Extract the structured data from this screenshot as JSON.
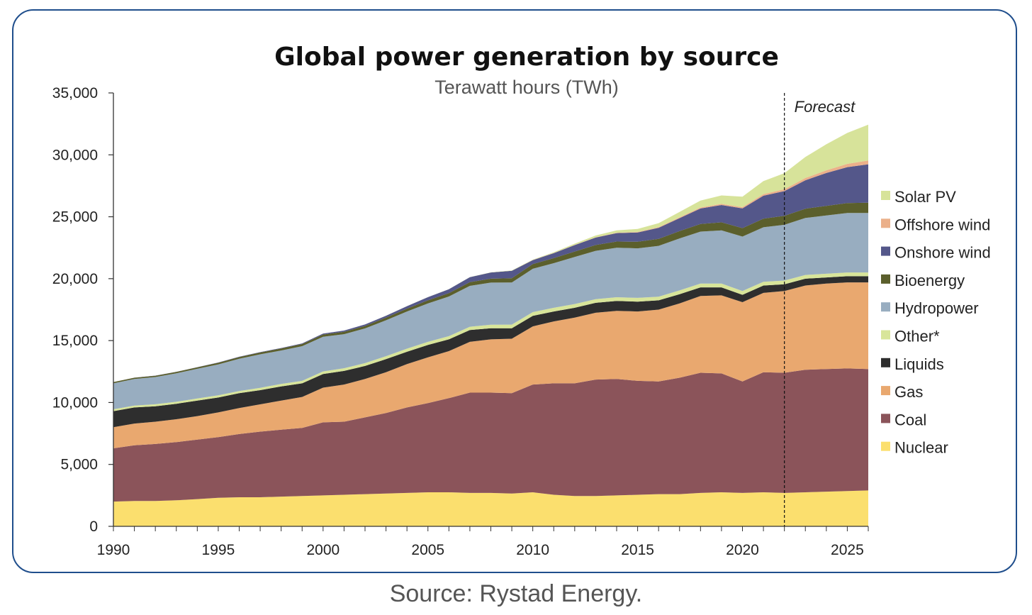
{
  "source": "Source: Rystad Energy.",
  "chart_data": {
    "type": "area",
    "stacked": true,
    "title": "Global power generation by source",
    "subtitle": "Terawatt hours (TWh)",
    "xlabel": "",
    "ylabel": "",
    "xlim": [
      1990,
      2026
    ],
    "ylim": [
      0,
      35000
    ],
    "x_ticks": [
      1990,
      1995,
      2000,
      2005,
      2010,
      2015,
      2020,
      2025
    ],
    "y_ticks": [
      0,
      5000,
      10000,
      15000,
      20000,
      25000,
      30000,
      35000
    ],
    "y_tick_labels": [
      "0",
      "5,000",
      "10,000",
      "15,000",
      "20,000",
      "25,000",
      "30,000",
      "35,000"
    ],
    "grid": false,
    "legend_position": "right",
    "forecast_line_x": 2022,
    "forecast_label": "Forecast",
    "x": [
      1990,
      1991,
      1992,
      1993,
      1994,
      1995,
      1996,
      1997,
      1998,
      1999,
      2000,
      2001,
      2002,
      2003,
      2004,
      2005,
      2006,
      2007,
      2008,
      2009,
      2010,
      2011,
      2012,
      2013,
      2014,
      2015,
      2016,
      2017,
      2018,
      2019,
      2020,
      2021,
      2022,
      2023,
      2024,
      2025,
      2026
    ],
    "series": [
      {
        "name": "Nuclear",
        "color": "#fbdf6e",
        "values": [
          2000,
          2050,
          2050,
          2100,
          2200,
          2300,
          2350,
          2350,
          2400,
          2450,
          2500,
          2550,
          2600,
          2650,
          2700,
          2750,
          2750,
          2700,
          2700,
          2650,
          2750,
          2550,
          2450,
          2450,
          2500,
          2550,
          2600,
          2600,
          2700,
          2750,
          2700,
          2750,
          2700,
          2750,
          2800,
          2850,
          2900
        ]
      },
      {
        "name": "Coal",
        "color": "#8b545a",
        "values": [
          4300,
          4500,
          4600,
          4700,
          4800,
          4900,
          5100,
          5300,
          5400,
          5500,
          5900,
          5900,
          6200,
          6500,
          6900,
          7200,
          7600,
          8100,
          8100,
          8100,
          8700,
          9000,
          9100,
          9400,
          9400,
          9200,
          9100,
          9400,
          9700,
          9600,
          9000,
          9700,
          9700,
          9900,
          9900,
          9900,
          9800
        ]
      },
      {
        "name": "Gas",
        "color": "#e9a86f",
        "values": [
          1700,
          1750,
          1800,
          1850,
          1900,
          2000,
          2100,
          2200,
          2350,
          2500,
          2800,
          3000,
          3100,
          3300,
          3500,
          3700,
          3800,
          4100,
          4300,
          4400,
          4700,
          5000,
          5300,
          5400,
          5500,
          5600,
          5800,
          6000,
          6200,
          6300,
          6400,
          6400,
          6600,
          6800,
          6900,
          6950,
          7000
        ]
      },
      {
        "name": "Liquids",
        "color": "#2e2e2e",
        "values": [
          1300,
          1300,
          1250,
          1250,
          1250,
          1200,
          1200,
          1150,
          1150,
          1100,
          1100,
          1100,
          1050,
          1050,
          1000,
          1000,
          950,
          950,
          900,
          850,
          850,
          800,
          800,
          800,
          800,
          800,
          750,
          750,
          700,
          650,
          600,
          600,
          550,
          550,
          500,
          500,
          500
        ]
      },
      {
        "name": "Other*",
        "color": "#d8e59a",
        "values": [
          150,
          150,
          160,
          160,
          170,
          180,
          180,
          190,
          200,
          200,
          210,
          220,
          230,
          240,
          250,
          250,
          260,
          270,
          280,
          290,
          300,
          300,
          300,
          300,
          300,
          300,
          300,
          300,
          300,
          300,
          300,
          300,
          300,
          300,
          300,
          300,
          300
        ]
      },
      {
        "name": "Hydropower",
        "color": "#98adc0",
        "values": [
          2100,
          2150,
          2200,
          2300,
          2400,
          2500,
          2600,
          2700,
          2700,
          2800,
          2800,
          2750,
          2800,
          2900,
          3000,
          3100,
          3200,
          3300,
          3400,
          3400,
          3500,
          3600,
          3800,
          3900,
          4000,
          4000,
          4100,
          4200,
          4200,
          4300,
          4400,
          4400,
          4500,
          4600,
          4700,
          4800,
          4800
        ]
      },
      {
        "name": "Bioenergy",
        "color": "#5b5f2c",
        "values": [
          100,
          100,
          100,
          110,
          120,
          130,
          140,
          150,
          160,
          170,
          180,
          190,
          200,
          210,
          230,
          250,
          270,
          300,
          320,
          350,
          380,
          410,
          440,
          470,
          500,
          530,
          560,
          590,
          620,
          650,
          680,
          700,
          720,
          750,
          780,
          810,
          840
        ]
      },
      {
        "name": "Onshore wind",
        "color": "#54578a",
        "values": [
          4,
          8,
          10,
          12,
          15,
          20,
          25,
          30,
          40,
          55,
          80,
          100,
          120,
          160,
          200,
          260,
          320,
          400,
          500,
          600,
          320,
          400,
          520,
          600,
          680,
          750,
          900,
          1050,
          1250,
          1400,
          1600,
          1850,
          2000,
          2300,
          2650,
          2900,
          3100
        ]
      },
      {
        "name": "Offshore wind",
        "color": "#ebb08a",
        "values": [
          0,
          0,
          0,
          0,
          0,
          0,
          0,
          0,
          0,
          0,
          0,
          0,
          0,
          0,
          0,
          0,
          0,
          0,
          0,
          0,
          10,
          15,
          20,
          25,
          30,
          40,
          50,
          60,
          80,
          90,
          100,
          130,
          150,
          180,
          220,
          260,
          300
        ]
      },
      {
        "name": "Solar PV",
        "color": "#d7e39a",
        "values": [
          0,
          0,
          0,
          0,
          0,
          0,
          0,
          0,
          0,
          0,
          1,
          2,
          2,
          3,
          4,
          5,
          6,
          8,
          12,
          20,
          30,
          60,
          100,
          140,
          190,
          250,
          320,
          440,
          560,
          680,
          840,
          1050,
          1300,
          1700,
          2100,
          2500,
          2900
        ]
      }
    ]
  }
}
